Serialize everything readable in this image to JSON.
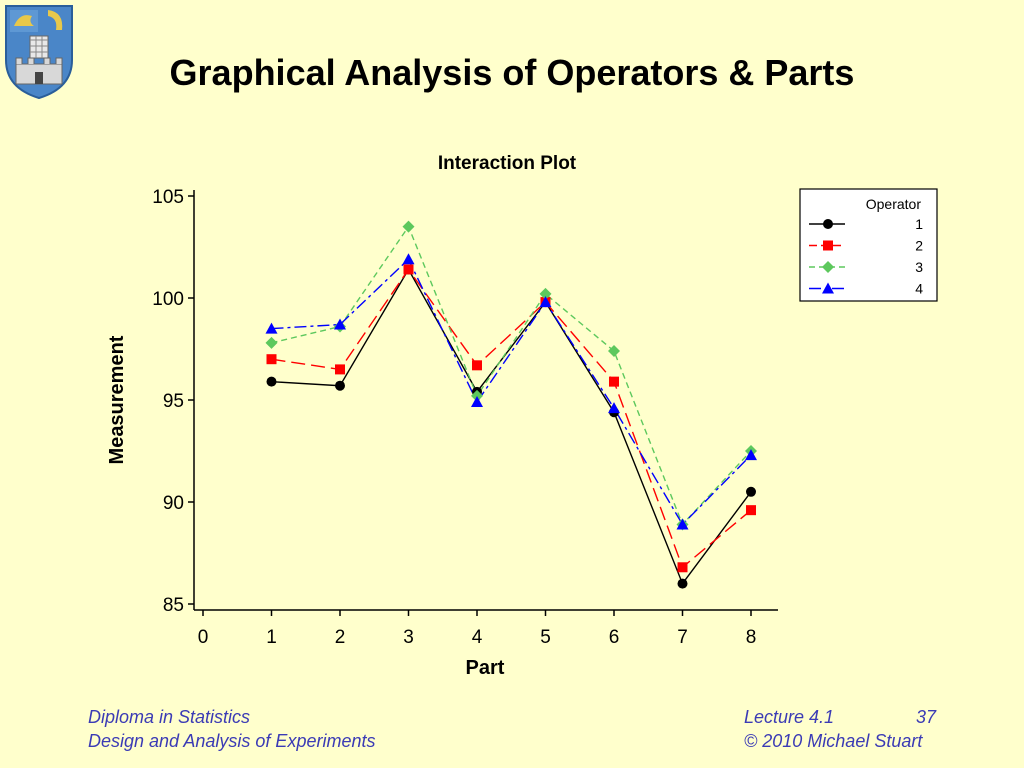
{
  "slide": {
    "title": "Graphical Analysis of Operators & Parts",
    "footer_left_line1": "Diploma in Statistics",
    "footer_left_line2": "Design and Analysis of Experiments",
    "footer_right_lecture": "Lecture 4.1",
    "footer_right_page": "37",
    "footer_right_copyright": "© 2010 Michael Stuart",
    "crest_icon": "university-crest-icon"
  },
  "chart_data": {
    "type": "line",
    "title": "Interaction Plot",
    "xlabel": "Part",
    "ylabel": "Measurement",
    "x": [
      1,
      2,
      3,
      4,
      5,
      6,
      7,
      8
    ],
    "xlim": [
      0,
      8
    ],
    "ylim": [
      85,
      105
    ],
    "xticks": [
      0,
      1,
      2,
      3,
      4,
      5,
      6,
      7,
      8
    ],
    "yticks": [
      85,
      90,
      95,
      100,
      105
    ],
    "grid": false,
    "legend_title": "Operator",
    "legend_position": "top-right",
    "series": [
      {
        "name": "1",
        "color": "#000000",
        "marker": "circle",
        "dash": "",
        "values": [
          95.9,
          95.7,
          101.4,
          95.4,
          99.8,
          94.4,
          86.0,
          90.5
        ]
      },
      {
        "name": "2",
        "color": "#FF0000",
        "marker": "square",
        "dash": "14,6",
        "values": [
          97.0,
          96.5,
          101.4,
          96.7,
          99.8,
          95.9,
          86.8,
          89.6
        ]
      },
      {
        "name": "3",
        "color": "#5DC85D",
        "marker": "diamond",
        "dash": "6,4",
        "values": [
          97.8,
          98.6,
          103.5,
          95.2,
          100.2,
          97.4,
          88.9,
          92.5
        ]
      },
      {
        "name": "4",
        "color": "#0000FF",
        "marker": "triangle",
        "dash": "12,4,3,4",
        "values": [
          98.5,
          98.7,
          101.9,
          94.9,
          99.8,
          94.6,
          88.9,
          92.3
        ]
      }
    ]
  }
}
